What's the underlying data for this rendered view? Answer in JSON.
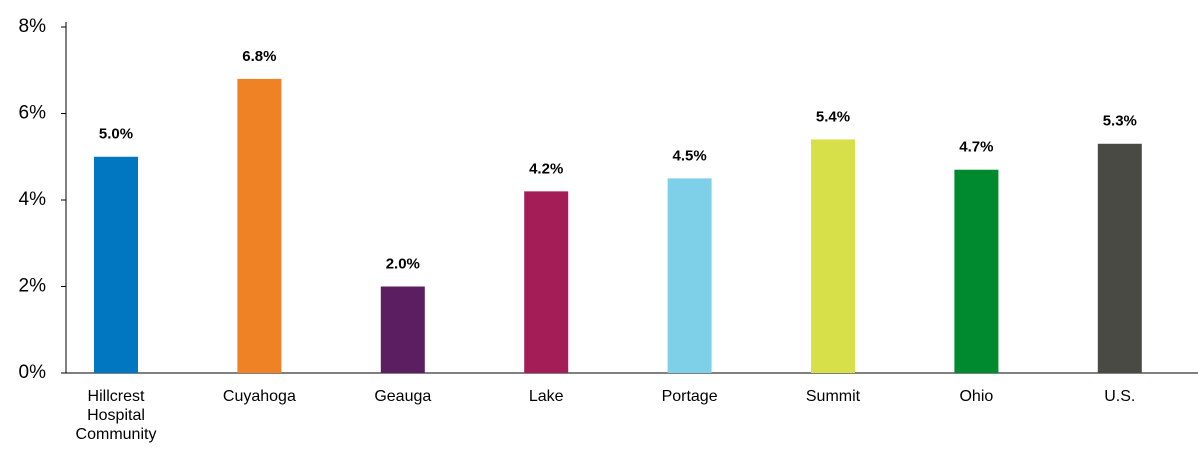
{
  "chart_data": {
    "type": "bar",
    "categories": [
      "Hillcrest Hospital Community",
      "Cuyahoga",
      "Geauga",
      "Lake",
      "Portage",
      "Summit",
      "Ohio",
      "U.S."
    ],
    "values": [
      5.0,
      6.8,
      2.0,
      4.2,
      4.5,
      5.4,
      4.7,
      5.3
    ],
    "value_labels": [
      "5.0%",
      "6.8%",
      "2.0%",
      "4.2%",
      "4.5%",
      "5.4%",
      "4.7%",
      "5.3%"
    ],
    "colors": [
      "#0077c0",
      "#f08226",
      "#5b1f61",
      "#a41d57",
      "#7dd0e8",
      "#d7e048",
      "#008a2f",
      "#4a4a44"
    ],
    "ylim": [
      0,
      8
    ],
    "yticks": [
      {
        "value": 0,
        "label": "0%"
      },
      {
        "value": 2,
        "label": "2%"
      },
      {
        "value": 4,
        "label": "4%"
      },
      {
        "value": 6,
        "label": "6%"
      },
      {
        "value": 8,
        "label": "8%"
      }
    ],
    "grid": false
  }
}
